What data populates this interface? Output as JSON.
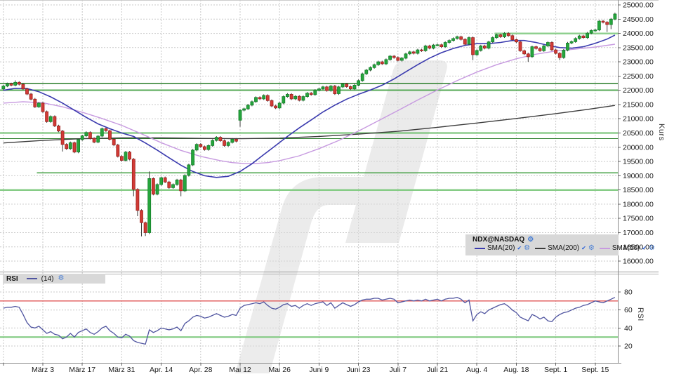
{
  "chart_data": {
    "type": "candlestick",
    "instrument": "NDX@NASDAQ",
    "panels": {
      "price": {
        "axis_label": "Kurs",
        "y_min": 16000,
        "y_max": 25000,
        "y_step": 500,
        "tick_format": "0.00",
        "x_tick_labels": [
          "März 3",
          "März 17",
          "März 31",
          "Apr. 14",
          "Apr. 28",
          "Mai 12",
          "Mai 26",
          "Juni 9",
          "Juni 23",
          "Juli 7",
          "Juli 21",
          "Aug. 4",
          "Aug. 18",
          "Sept. 1",
          "Sept. 15"
        ],
        "first_tick_candle_index": 10,
        "candles_per_tick": 10,
        "closes": [
          22150,
          22230,
          22180,
          22280,
          22210,
          22050,
          21870,
          21690,
          21420,
          21550,
          21250,
          20900,
          21080,
          20750,
          20570,
          20100,
          19950,
          20160,
          19830,
          20270,
          20400,
          20520,
          20310,
          20180,
          20390,
          20650,
          20580,
          20280,
          20080,
          19680,
          19540,
          19830,
          19580,
          18520,
          17780,
          17350,
          17000,
          18900,
          18350,
          18690,
          18930,
          18780,
          18580,
          18690,
          18850,
          18470,
          19010,
          19380,
          19900,
          20100,
          20020,
          19920,
          20060,
          20240,
          20350,
          20230,
          20060,
          20170,
          20280,
          20210,
          21300,
          21350,
          21480,
          21600,
          21750,
          21700,
          21820,
          21640,
          21450,
          21380,
          21550,
          21780,
          21860,
          21700,
          21790,
          21650,
          21780,
          21900,
          21850,
          22000,
          22050,
          22120,
          21990,
          22150,
          21880,
          22120,
          22220,
          22130,
          22050,
          22180,
          22340,
          22580,
          22710,
          22800,
          22900,
          23000,
          22930,
          23080,
          23200,
          23150,
          23050,
          23130,
          23280,
          23350,
          23300,
          23420,
          23390,
          23560,
          23480,
          23590,
          23600,
          23530,
          23680,
          23750,
          23820,
          23880,
          23790,
          23620,
          23850,
          23250,
          23400,
          23560,
          23480,
          23700,
          23850,
          23950,
          23880,
          24000,
          23920,
          23780,
          23700,
          23390,
          23280,
          23180,
          23530,
          23470,
          23390,
          23560,
          23680,
          23420,
          23300,
          23150,
          23410,
          23660,
          23710,
          23820,
          23910,
          23850,
          24010,
          24100,
          24120,
          24430,
          24390,
          24310,
          24500,
          24680
        ],
        "open_overrides": {
          "0": 22050,
          "60": 20950
        },
        "wick_overrides": {
          "3": [
            22350,
            0
          ],
          "15": [
            0,
            19850
          ],
          "33": [
            0,
            18280
          ],
          "34": [
            0,
            17580
          ],
          "35": [
            0,
            16870
          ],
          "36": [
            0,
            16880
          ],
          "37": [
            19150,
            16950
          ],
          "45": [
            0,
            18280
          ],
          "60": [
            0,
            20720
          ],
          "119": [
            0,
            23060
          ],
          "133": [
            0,
            23000
          ],
          "141": [
            0,
            23060
          ],
          "153": [
            0,
            24050
          ],
          "154": [
            0,
            24150
          ],
          "155": [
            24730,
            0
          ]
        },
        "sma20": [
          [
            0,
            22000
          ],
          [
            3,
            22070
          ],
          [
            6,
            22060
          ],
          [
            9,
            21950
          ],
          [
            12,
            21770
          ],
          [
            15,
            21550
          ],
          [
            18,
            21300
          ],
          [
            21,
            21050
          ],
          [
            24,
            20820
          ],
          [
            27,
            20650
          ],
          [
            30,
            20500
          ],
          [
            33,
            20380
          ],
          [
            36,
            20150
          ],
          [
            39,
            19900
          ],
          [
            42,
            19630
          ],
          [
            45,
            19370
          ],
          [
            48,
            19150
          ],
          [
            51,
            19000
          ],
          [
            54,
            18940
          ],
          [
            57,
            18980
          ],
          [
            60,
            19150
          ],
          [
            63,
            19420
          ],
          [
            66,
            19740
          ],
          [
            69,
            20060
          ],
          [
            72,
            20380
          ],
          [
            75,
            20680
          ],
          [
            78,
            20960
          ],
          [
            81,
            21240
          ],
          [
            84,
            21480
          ],
          [
            87,
            21690
          ],
          [
            90,
            21860
          ],
          [
            93,
            22010
          ],
          [
            96,
            22180
          ],
          [
            99,
            22400
          ],
          [
            102,
            22650
          ],
          [
            105,
            22900
          ],
          [
            108,
            23130
          ],
          [
            111,
            23320
          ],
          [
            114,
            23470
          ],
          [
            117,
            23580
          ],
          [
            120,
            23640
          ],
          [
            123,
            23640
          ],
          [
            126,
            23680
          ],
          [
            129,
            23750
          ],
          [
            132,
            23750
          ],
          [
            135,
            23680
          ],
          [
            138,
            23580
          ],
          [
            141,
            23500
          ],
          [
            144,
            23480
          ],
          [
            147,
            23530
          ],
          [
            150,
            23650
          ],
          [
            153,
            23800
          ],
          [
            155,
            23940
          ]
        ],
        "sma50": [
          [
            0,
            21550
          ],
          [
            5,
            21600
          ],
          [
            10,
            21560
          ],
          [
            15,
            21420
          ],
          [
            20,
            21230
          ],
          [
            25,
            21010
          ],
          [
            30,
            20770
          ],
          [
            35,
            20470
          ],
          [
            40,
            20160
          ],
          [
            45,
            19890
          ],
          [
            50,
            19680
          ],
          [
            55,
            19530
          ],
          [
            58,
            19460
          ],
          [
            61,
            19430
          ],
          [
            64,
            19430
          ],
          [
            67,
            19460
          ],
          [
            70,
            19530
          ],
          [
            75,
            19700
          ],
          [
            80,
            19950
          ],
          [
            85,
            20240
          ],
          [
            90,
            20570
          ],
          [
            95,
            20930
          ],
          [
            100,
            21290
          ],
          [
            105,
            21660
          ],
          [
            110,
            22010
          ],
          [
            115,
            22340
          ],
          [
            120,
            22640
          ],
          [
            125,
            22900
          ],
          [
            130,
            23110
          ],
          [
            135,
            23270
          ],
          [
            140,
            23380
          ],
          [
            145,
            23450
          ],
          [
            150,
            23520
          ],
          [
            155,
            23620
          ]
        ],
        "sma200": [
          [
            0,
            20150
          ],
          [
            10,
            20240
          ],
          [
            20,
            20300
          ],
          [
            30,
            20330
          ],
          [
            40,
            20330
          ],
          [
            50,
            20310
          ],
          [
            60,
            20300
          ],
          [
            70,
            20320
          ],
          [
            80,
            20380
          ],
          [
            90,
            20460
          ],
          [
            100,
            20560
          ],
          [
            110,
            20700
          ],
          [
            120,
            20850
          ],
          [
            130,
            21010
          ],
          [
            140,
            21180
          ],
          [
            148,
            21330
          ],
          [
            155,
            21470
          ]
        ],
        "hlines": [
          {
            "value": 24000,
            "from_index": 125,
            "color": "#8fd08f",
            "width": 2.5
          },
          {
            "value": 22250,
            "from_index": 0,
            "color": "#2a7e2a",
            "width": 1.5
          },
          {
            "value": 22000,
            "from_index": 0,
            "color": "#55a855",
            "width": 2
          },
          {
            "value": 20500,
            "from_index": 0,
            "color": "#6fbf6f",
            "width": 2
          },
          {
            "value": 20300,
            "from_index": 0,
            "color": "#2a7e2a",
            "width": 1.2
          },
          {
            "value": 19100,
            "from_index": 9,
            "color": "#44a044",
            "width": 1.5
          },
          {
            "value": 18500,
            "from_index": 0,
            "color": "#86cc86",
            "width": 2.5
          }
        ]
      },
      "rsi": {
        "axis_label": "RSI",
        "y_ticks": [
          20,
          40,
          60,
          80
        ],
        "overbought": {
          "value": 70,
          "color": "#e05555"
        },
        "oversold": {
          "value": 30,
          "color": "#7cc87c"
        },
        "values": [
          62,
          63,
          63,
          64,
          63,
          55,
          46,
          41,
          40,
          42,
          38,
          34,
          36,
          33,
          32,
          28,
          30,
          34,
          30,
          35,
          37,
          39,
          35,
          33,
          36,
          40,
          42,
          37,
          34,
          30,
          29,
          33,
          31,
          26,
          24,
          23,
          22,
          38,
          35,
          37,
          40,
          39,
          38,
          39,
          41,
          37,
          45,
          48,
          52,
          54,
          53,
          51,
          52,
          54,
          56,
          54,
          52,
          53,
          55,
          54,
          62,
          65,
          66,
          67,
          68,
          67,
          69,
          65,
          62,
          61,
          63,
          66,
          67,
          64,
          65,
          62,
          65,
          67,
          65,
          67,
          68,
          69,
          65,
          68,
          62,
          65,
          68,
          66,
          64,
          66,
          69,
          71,
          72,
          72,
          73,
          73,
          71,
          72,
          73,
          72,
          68,
          69,
          70,
          71,
          70,
          71,
          70,
          72,
          70,
          71,
          72,
          70,
          72,
          73,
          73,
          74,
          72,
          68,
          71,
          48,
          55,
          58,
          56,
          60,
          62,
          64,
          66,
          67,
          64,
          60,
          57,
          52,
          50,
          48,
          55,
          53,
          50,
          52,
          48,
          47,
          52,
          55,
          57,
          58,
          60,
          62,
          63,
          65,
          66,
          68,
          70,
          69,
          68,
          70,
          72,
          74
        ]
      }
    }
  },
  "legend": {
    "instrument": "NDX@NASDAQ",
    "items": [
      {
        "label": "SMA(20)",
        "color": "#3a3aae",
        "checked": true
      },
      {
        "label": "SMA(200)",
        "color": "#3c3c3c",
        "checked": true
      },
      {
        "label": "SMA(50)",
        "color": "#c79ae0",
        "checked": true
      }
    ],
    "rsi": {
      "title": "RSI",
      "period_label": "(14)",
      "color": "#5055a0"
    }
  },
  "colors": {
    "candle_up": "#26a53d",
    "candle_up_stroke": "#14802a",
    "candle_down": "#d23b36",
    "candle_down_stroke": "#9c221e",
    "wick": "#3a3a3a",
    "sma20": "#3a3aae",
    "sma50": "#c79ae0",
    "sma200": "#3c3c3c",
    "rsi_line": "#5055a0",
    "grid": "#c9c9c9",
    "axis_text": "#1a1a1a",
    "watermark": "#dcdcdc",
    "legend_bg": "#d8d8d8"
  }
}
